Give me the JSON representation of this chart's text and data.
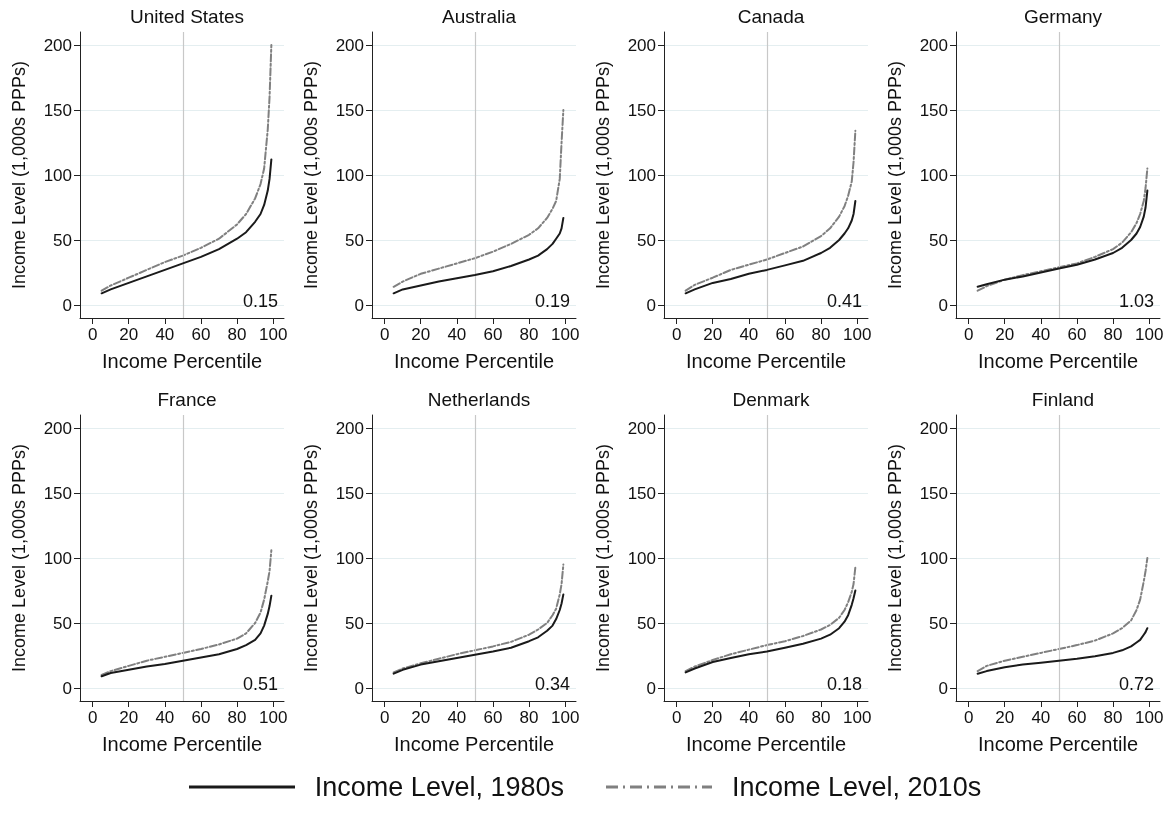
{
  "chart_data": [
    {
      "type": "line",
      "title": "United States",
      "xlabel": "Income Percentile",
      "ylabel": "Income Level (1,000s PPPs)",
      "x": [
        5,
        10,
        20,
        30,
        40,
        50,
        60,
        70,
        80,
        85,
        90,
        93,
        95,
        97,
        98,
        99
      ],
      "legend": "bottom",
      "marker": "none",
      "grid": "y",
      "xlim": [
        -7,
        106
      ],
      "xticks": [
        0,
        20,
        40,
        60,
        80,
        100
      ],
      "ylim": [
        -10,
        210
      ],
      "yticks": [
        0,
        50,
        100,
        150,
        200
      ],
      "ref_lines": [
        {
          "axis": "x",
          "value": 50,
          "label": null,
          "color": "#c8c8c8"
        }
      ],
      "annotations": [
        "0.15"
      ],
      "series": [
        {
          "name": "Income Level, 1980s",
          "color": "#1a1a1a",
          "line_style": "solid",
          "values": [
            9,
            12,
            17,
            22,
            27,
            32,
            37,
            43,
            51,
            56,
            64,
            70,
            77,
            88,
            97,
            112
          ]
        },
        {
          "name": "Income Level, 2010s",
          "color": "#808080",
          "line_style": "dashed",
          "values": [
            11,
            15,
            21,
            27,
            33,
            38,
            44,
            51,
            62,
            70,
            82,
            93,
            105,
            135,
            160,
            200
          ]
        }
      ]
    },
    {
      "type": "line",
      "title": "Australia",
      "xlabel": "Income Percentile",
      "ylabel": "Income Level (1,000s PPPs)",
      "x": [
        5,
        10,
        20,
        30,
        40,
        50,
        60,
        70,
        80,
        85,
        90,
        93,
        95,
        97,
        98,
        99
      ],
      "marker": "none",
      "grid": "y",
      "xlim": [
        -7,
        106
      ],
      "xticks": [
        0,
        20,
        40,
        60,
        80,
        100
      ],
      "ylim": [
        -10,
        210
      ],
      "yticks": [
        0,
        50,
        100,
        150,
        200
      ],
      "ref_lines": [
        {
          "axis": "x",
          "value": 50,
          "label": null,
          "color": "#c8c8c8"
        }
      ],
      "annotations": [
        "0.19"
      ],
      "series": [
        {
          "color": "#1a1a1a",
          "line_style": "solid",
          "values": [
            9,
            12,
            15,
            18,
            20.5,
            23,
            26,
            30,
            35,
            38,
            43,
            47,
            51,
            55,
            59,
            67
          ]
        },
        {
          "color": "#808080",
          "line_style": "dashed",
          "values": [
            14,
            18,
            24,
            28,
            32,
            36,
            41,
            47,
            54,
            59,
            67,
            74,
            80,
            97,
            125,
            150
          ]
        }
      ]
    },
    {
      "type": "line",
      "title": "Canada",
      "xlabel": "Income Percentile",
      "ylabel": "Income Level (1,000s PPPs)",
      "x": [
        5,
        10,
        20,
        30,
        40,
        50,
        60,
        70,
        80,
        85,
        90,
        93,
        95,
        97,
        98,
        99
      ],
      "marker": "none",
      "grid": "y",
      "xlim": [
        -7,
        106
      ],
      "xticks": [
        0,
        20,
        40,
        60,
        80,
        100
      ],
      "ylim": [
        -10,
        210
      ],
      "yticks": [
        0,
        50,
        100,
        150,
        200
      ],
      "ref_lines": [
        {
          "axis": "x",
          "value": 50,
          "label": null,
          "color": "#c8c8c8"
        }
      ],
      "annotations": [
        "0.41"
      ],
      "series": [
        {
          "color": "#1a1a1a",
          "line_style": "solid",
          "values": [
            9,
            12,
            17,
            20,
            24,
            27,
            30.5,
            34,
            40,
            44,
            50,
            55,
            59,
            65,
            70,
            80
          ]
        },
        {
          "color": "#808080",
          "line_style": "dashed",
          "values": [
            11,
            15.5,
            21,
            27,
            31,
            35,
            40,
            45,
            53,
            59,
            68,
            76,
            84,
            95,
            110,
            134
          ]
        }
      ]
    },
    {
      "type": "line",
      "title": "Germany",
      "xlabel": "Income Percentile",
      "ylabel": "Income Level (1,000s PPPs)",
      "x": [
        5,
        10,
        20,
        30,
        40,
        50,
        60,
        70,
        80,
        85,
        90,
        93,
        95,
        97,
        98,
        99
      ],
      "marker": "none",
      "grid": "y",
      "xlim": [
        -7,
        106
      ],
      "xticks": [
        0,
        20,
        40,
        60,
        80,
        100
      ],
      "ylim": [
        -10,
        210
      ],
      "yticks": [
        0,
        50,
        100,
        150,
        200
      ],
      "ref_lines": [
        {
          "axis": "x",
          "value": 50,
          "label": null,
          "color": "#c8c8c8"
        }
      ],
      "annotations": [
        "1.03"
      ],
      "series": [
        {
          "color": "#1a1a1a",
          "line_style": "solid",
          "values": [
            14,
            16,
            19.5,
            22,
            25,
            28,
            31,
            35,
            40,
            44,
            50,
            55,
            60,
            68,
            75,
            88
          ]
        },
        {
          "color": "#808080",
          "line_style": "dashed",
          "values": [
            11,
            14.5,
            19.5,
            23,
            26,
            29,
            32,
            37,
            43,
            48,
            56,
            63,
            70,
            80,
            90,
            105
          ]
        }
      ]
    },
    {
      "type": "line",
      "title": "France",
      "xlabel": "Income Percentile",
      "ylabel": "Income Level (1,000s PPPs)",
      "x": [
        5,
        10,
        20,
        30,
        40,
        50,
        60,
        70,
        80,
        85,
        90,
        93,
        95,
        97,
        98,
        99
      ],
      "marker": "none",
      "grid": "y",
      "xlim": [
        -7,
        106
      ],
      "xticks": [
        0,
        20,
        40,
        60,
        80,
        100
      ],
      "ylim": [
        -10,
        210
      ],
      "yticks": [
        0,
        50,
        100,
        150,
        200
      ],
      "ref_lines": [
        {
          "axis": "x",
          "value": 50,
          "label": null,
          "color": "#c8c8c8"
        }
      ],
      "annotations": [
        "0.51"
      ],
      "series": [
        {
          "color": "#1a1a1a",
          "line_style": "solid",
          "values": [
            9,
            11.5,
            14,
            16.5,
            18.5,
            21,
            23.5,
            26,
            30,
            33,
            37,
            42,
            48,
            57,
            63,
            71
          ]
        },
        {
          "color": "#808080",
          "line_style": "dashed",
          "values": [
            10,
            13,
            17,
            21,
            24,
            27,
            30,
            33.5,
            38,
            42,
            50,
            58,
            68,
            82,
            90,
            106
          ]
        }
      ]
    },
    {
      "type": "line",
      "title": "Netherlands",
      "xlabel": "Income Percentile",
      "ylabel": "Income Level (1,000s PPPs)",
      "x": [
        5,
        10,
        20,
        30,
        40,
        50,
        60,
        70,
        80,
        85,
        90,
        93,
        95,
        97,
        98,
        99
      ],
      "marker": "none",
      "grid": "y",
      "xlim": [
        -7,
        106
      ],
      "xticks": [
        0,
        20,
        40,
        60,
        80,
        100
      ],
      "ylim": [
        -10,
        210
      ],
      "yticks": [
        0,
        50,
        100,
        150,
        200
      ],
      "ref_lines": [
        {
          "axis": "x",
          "value": 50,
          "label": null,
          "color": "#c8c8c8"
        }
      ],
      "annotations": [
        "0.34"
      ],
      "series": [
        {
          "color": "#1a1a1a",
          "line_style": "solid",
          "values": [
            11,
            14,
            18,
            20.5,
            23,
            25.5,
            28,
            31,
            36,
            39,
            44,
            48,
            53,
            60,
            65,
            72
          ]
        },
        {
          "color": "#808080",
          "line_style": "dashed",
          "values": [
            12,
            15,
            19,
            22.5,
            26,
            29,
            32,
            35.5,
            41,
            45,
            50,
            56,
            61,
            72,
            80,
            95
          ]
        }
      ]
    },
    {
      "type": "line",
      "title": "Denmark",
      "xlabel": "Income Percentile",
      "ylabel": "Income Level (1,000s PPPs)",
      "x": [
        5,
        10,
        20,
        30,
        40,
        50,
        60,
        70,
        80,
        85,
        90,
        93,
        95,
        97,
        98,
        99
      ],
      "marker": "none",
      "grid": "y",
      "xlim": [
        -7,
        106
      ],
      "xticks": [
        0,
        20,
        40,
        60,
        80,
        100
      ],
      "ylim": [
        -10,
        210
      ],
      "yticks": [
        0,
        50,
        100,
        150,
        200
      ],
      "ref_lines": [
        {
          "axis": "x",
          "value": 50,
          "label": null,
          "color": "#c8c8c8"
        }
      ],
      "annotations": [
        "0.18"
      ],
      "series": [
        {
          "color": "#1a1a1a",
          "line_style": "solid",
          "values": [
            12,
            15,
            20,
            23,
            26,
            28,
            31,
            34,
            38,
            41,
            46,
            51,
            56,
            64,
            69,
            75
          ]
        },
        {
          "color": "#808080",
          "line_style": "dashed",
          "values": [
            13,
            16.5,
            21.5,
            26,
            29.5,
            33,
            36,
            40,
            45,
            48.5,
            54,
            60,
            66,
            74,
            80,
            93
          ]
        }
      ]
    },
    {
      "type": "line",
      "title": "Finland",
      "xlabel": "Income Percentile",
      "ylabel": "Income Level (1,000s PPPs)",
      "x": [
        5,
        10,
        20,
        30,
        40,
        50,
        60,
        70,
        80,
        85,
        90,
        93,
        95,
        97,
        98,
        99
      ],
      "marker": "none",
      "grid": "y",
      "xlim": [
        -7,
        106
      ],
      "xticks": [
        0,
        20,
        40,
        60,
        80,
        100
      ],
      "ylim": [
        -10,
        210
      ],
      "yticks": [
        0,
        50,
        100,
        150,
        200
      ],
      "ref_lines": [
        {
          "axis": "x",
          "value": 50,
          "label": null,
          "color": "#c8c8c8"
        }
      ],
      "annotations": [
        "0.72"
      ],
      "series": [
        {
          "color": "#1a1a1a",
          "line_style": "solid",
          "values": [
            11,
            13,
            16,
            18,
            19.5,
            21,
            22.5,
            24.5,
            27,
            29,
            32,
            35,
            37,
            41,
            43,
            46
          ]
        },
        {
          "color": "#808080",
          "line_style": "dashed",
          "values": [
            13,
            17,
            21,
            24,
            27,
            30,
            33,
            36.5,
            42,
            46,
            52,
            60,
            68,
            82,
            90,
            100
          ]
        }
      ]
    }
  ]
}
